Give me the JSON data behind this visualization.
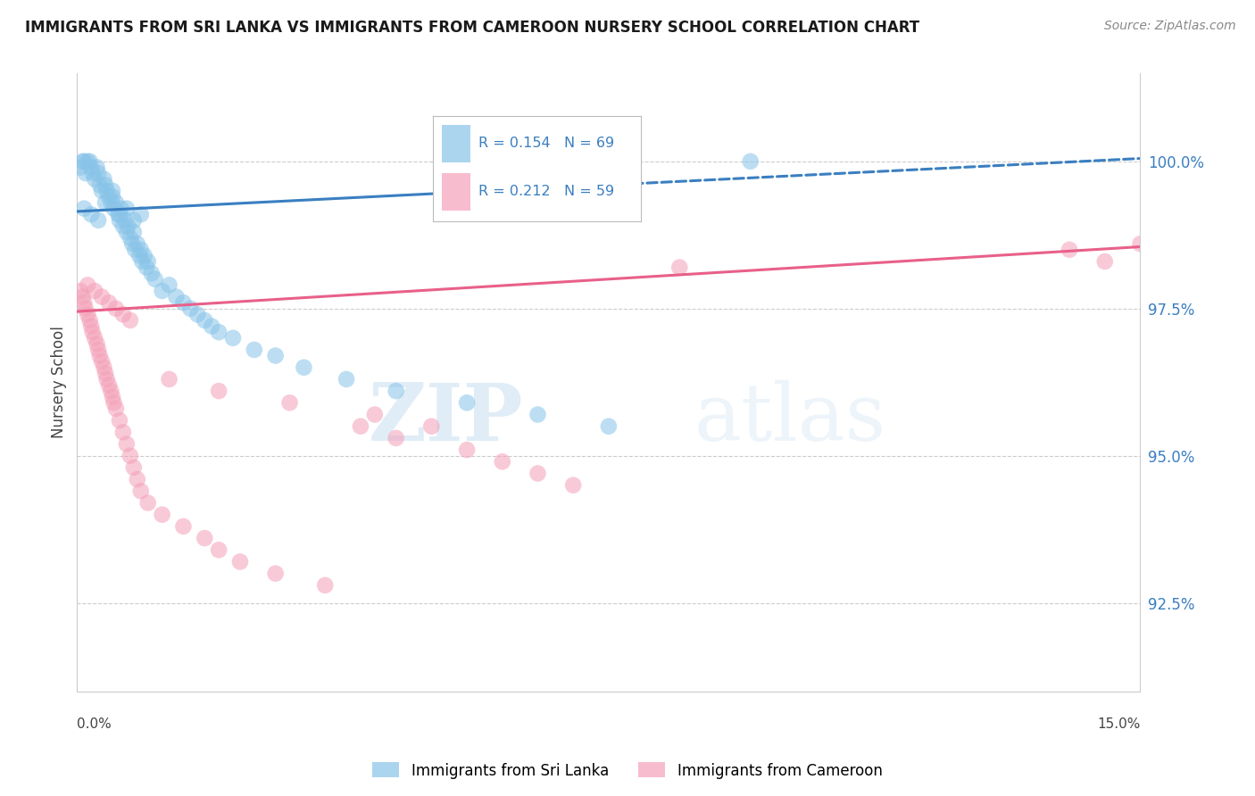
{
  "title": "IMMIGRANTS FROM SRI LANKA VS IMMIGRANTS FROM CAMEROON NURSERY SCHOOL CORRELATION CHART",
  "source": "Source: ZipAtlas.com",
  "ylabel": "Nursery School",
  "yticks": [
    92.5,
    95.0,
    97.5,
    100.0
  ],
  "ytick_labels": [
    "92.5%",
    "95.0%",
    "97.5%",
    "100.0%"
  ],
  "xlim": [
    0.0,
    15.0
  ],
  "ylim": [
    91.0,
    101.5
  ],
  "legend_label1": "Immigrants from Sri Lanka",
  "legend_label2": "Immigrants from Cameroon",
  "color_sri_lanka": "#88c4e8",
  "color_cameroon": "#f4a0b8",
  "color_line_sri_lanka": "#3a7fc1",
  "color_line_cameroon": "#e8608a",
  "watermark_zip": "ZIP",
  "watermark_atlas": "atlas",
  "sri_lanka_x": [
    0.05,
    0.08,
    0.1,
    0.12,
    0.15,
    0.18,
    0.2,
    0.22,
    0.25,
    0.28,
    0.3,
    0.32,
    0.35,
    0.38,
    0.4,
    0.42,
    0.45,
    0.48,
    0.5,
    0.52,
    0.55,
    0.58,
    0.6,
    0.62,
    0.65,
    0.68,
    0.7,
    0.72,
    0.75,
    0.78,
    0.8,
    0.82,
    0.85,
    0.88,
    0.9,
    0.92,
    0.95,
    0.98,
    1.0,
    1.05,
    1.1,
    1.2,
    1.3,
    1.4,
    1.5,
    1.6,
    1.7,
    1.8,
    1.9,
    2.0,
    2.2,
    2.5,
    2.8,
    3.2,
    3.8,
    4.5,
    5.5,
    6.5,
    7.5,
    9.5,
    0.1,
    0.2,
    0.3,
    0.4,
    0.5,
    0.6,
    0.7,
    0.8,
    0.9
  ],
  "sri_lanka_y": [
    99.9,
    100.0,
    100.0,
    99.8,
    100.0,
    100.0,
    99.9,
    99.8,
    99.7,
    99.9,
    99.8,
    99.6,
    99.5,
    99.7,
    99.6,
    99.5,
    99.4,
    99.3,
    99.5,
    99.2,
    99.3,
    99.1,
    99.0,
    99.2,
    98.9,
    99.0,
    98.8,
    98.9,
    98.7,
    98.6,
    98.8,
    98.5,
    98.6,
    98.4,
    98.5,
    98.3,
    98.4,
    98.2,
    98.3,
    98.1,
    98.0,
    97.8,
    97.9,
    97.7,
    97.6,
    97.5,
    97.4,
    97.3,
    97.2,
    97.1,
    97.0,
    96.8,
    96.7,
    96.5,
    96.3,
    96.1,
    95.9,
    95.7,
    95.5,
    100.0,
    99.2,
    99.1,
    99.0,
    99.3,
    99.4,
    99.1,
    99.2,
    99.0,
    99.1
  ],
  "cameroon_x": [
    0.05,
    0.08,
    0.1,
    0.12,
    0.15,
    0.18,
    0.2,
    0.22,
    0.25,
    0.28,
    0.3,
    0.32,
    0.35,
    0.38,
    0.4,
    0.42,
    0.45,
    0.48,
    0.5,
    0.52,
    0.55,
    0.6,
    0.65,
    0.7,
    0.75,
    0.8,
    0.85,
    0.9,
    1.0,
    1.2,
    1.5,
    1.8,
    2.0,
    2.3,
    2.8,
    3.5,
    4.0,
    4.5,
    5.5,
    6.0,
    6.5,
    7.0,
    0.15,
    0.25,
    0.35,
    0.45,
    0.55,
    0.65,
    0.75,
    1.3,
    2.0,
    3.0,
    4.2,
    5.0,
    8.5,
    14.0,
    14.5,
    15.0
  ],
  "cameroon_y": [
    97.8,
    97.7,
    97.6,
    97.5,
    97.4,
    97.3,
    97.2,
    97.1,
    97.0,
    96.9,
    96.8,
    96.7,
    96.6,
    96.5,
    96.4,
    96.3,
    96.2,
    96.1,
    96.0,
    95.9,
    95.8,
    95.6,
    95.4,
    95.2,
    95.0,
    94.8,
    94.6,
    94.4,
    94.2,
    94.0,
    93.8,
    93.6,
    93.4,
    93.2,
    93.0,
    92.8,
    95.5,
    95.3,
    95.1,
    94.9,
    94.7,
    94.5,
    97.9,
    97.8,
    97.7,
    97.6,
    97.5,
    97.4,
    97.3,
    96.3,
    96.1,
    95.9,
    95.7,
    95.5,
    98.2,
    98.5,
    98.3,
    98.6
  ]
}
